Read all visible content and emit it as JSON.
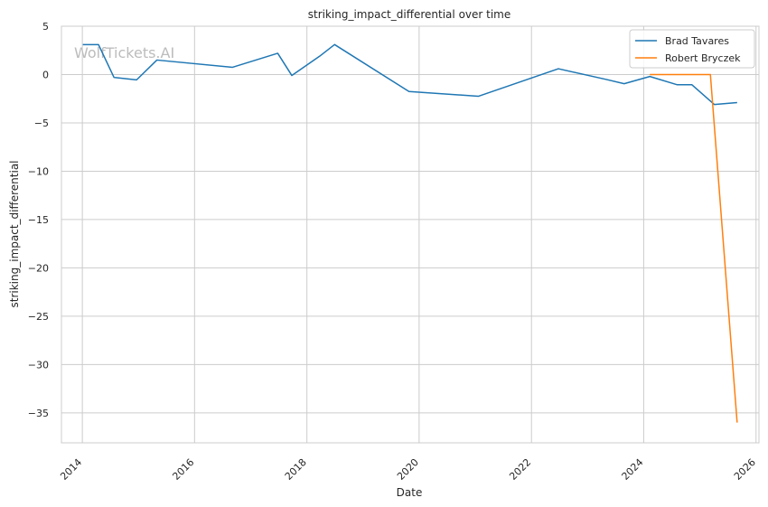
{
  "watermark": "WolfTickets.AI",
  "chart_data": {
    "type": "line",
    "title": "striking_impact_differential over time",
    "xlabel": "Date",
    "ylabel": "striking_impact_differential",
    "xlim": [
      "2013-08-18",
      "2026-01-20"
    ],
    "ylim": [
      -38.1,
      5
    ],
    "x_ticks": [
      "2014",
      "2016",
      "2018",
      "2020",
      "2022",
      "2024",
      "2026"
    ],
    "y_ticks": [
      5,
      0,
      -5,
      -10,
      -15,
      -20,
      -25,
      -30,
      -35
    ],
    "y_tick_labels": [
      "5",
      "0",
      "−5",
      "−10",
      "−15",
      "−20",
      "−25",
      "−30",
      "−35"
    ],
    "grid": true,
    "legend_position": "top-right",
    "series": [
      {
        "name": "Brad Tavares",
        "color": "#1f77b4",
        "points": [
          [
            "2014-01-04",
            3.1
          ],
          [
            "2014-04-16",
            3.1
          ],
          [
            "2014-07-26",
            -0.3
          ],
          [
            "2014-12-20",
            -0.55
          ],
          [
            "2015-05-01",
            1.5
          ],
          [
            "2016-09-04",
            0.75
          ],
          [
            "2017-06-25",
            2.2
          ],
          [
            "2017-09-25",
            -0.1
          ],
          [
            "2018-03-25",
            1.9
          ],
          [
            "2018-06-30",
            3.1
          ],
          [
            "2019-10-27",
            -1.75
          ],
          [
            "2021-01-20",
            -2.25
          ],
          [
            "2022-06-25",
            0.6
          ],
          [
            "2023-04-30",
            -0.5
          ],
          [
            "2023-08-27",
            -0.95
          ],
          [
            "2024-02-10",
            -0.2
          ],
          [
            "2024-08-04",
            -1.05
          ],
          [
            "2024-11-09",
            -1.05
          ],
          [
            "2025-04-05",
            -3.1
          ],
          [
            "2025-08-31",
            -2.9
          ]
        ]
      },
      {
        "name": "Robert Bryczek",
        "color": "#ff7f0e",
        "points": [
          [
            "2024-02-10",
            0
          ],
          [
            "2025-03-10",
            0
          ],
          [
            "2025-08-31",
            -36
          ]
        ]
      }
    ]
  }
}
